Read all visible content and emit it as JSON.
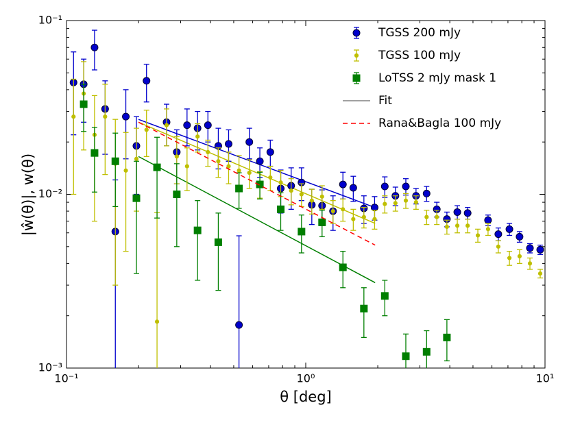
{
  "chart_data": {
    "type": "scatter",
    "x_label": "θ [deg]",
    "y_label": "|ŵ(θ)|, w(θ)",
    "xscale": "log",
    "yscale": "log",
    "xlim": [
      0.1,
      10
    ],
    "ylim": [
      0.001,
      0.1
    ],
    "xticks": [
      {
        "value": 0.1,
        "label": "10⁻¹"
      },
      {
        "value": 1,
        "label": "10⁰"
      },
      {
        "value": 10,
        "label": "10¹"
      }
    ],
    "yticks": [
      {
        "value": 0.001,
        "label": "10⁻³"
      },
      {
        "value": 0.01,
        "label": "10⁻²"
      },
      {
        "value": 0.1,
        "label": "10⁻¹"
      }
    ],
    "legend": "upper right",
    "series": [
      {
        "name": "TGSS 200 mJy",
        "color": "#0000cc",
        "style": "points",
        "marker": "circle",
        "x": [
          0.107,
          0.118,
          0.131,
          0.145,
          0.16,
          0.177,
          0.196,
          0.216,
          0.262,
          0.289,
          0.319,
          0.353,
          0.39,
          0.431,
          0.476,
          0.526,
          0.581,
          0.643,
          0.711,
          0.786,
          0.869,
          0.96,
          1.06,
          1.17,
          1.3,
          1.43,
          1.58,
          1.75,
          1.94,
          2.14,
          2.37,
          2.62,
          2.89,
          3.2,
          3.53,
          3.89,
          4.3,
          4.75,
          5.78,
          6.38,
          7.1,
          7.83,
          8.65,
          9.55
        ],
        "values": [
          0.044,
          0.043,
          0.07,
          0.031,
          0.0061,
          0.028,
          0.019,
          0.045,
          0.026,
          0.0175,
          0.025,
          0.024,
          0.025,
          0.019,
          0.0195,
          0.00177,
          0.02,
          0.0155,
          0.0175,
          0.0108,
          0.0112,
          0.0117,
          0.0087,
          0.0086,
          0.008,
          0.0114,
          0.0109,
          0.0083,
          0.0084,
          0.0111,
          0.0098,
          0.0111,
          0.0098,
          0.0101,
          0.0082,
          0.0072,
          0.0079,
          0.0078,
          0.0071,
          0.0059,
          0.0063,
          0.0057,
          0.0049,
          0.0048
        ],
        "errors": [
          0.022,
          0.017,
          0.018,
          0.014,
          0.006,
          0.012,
          0.009,
          0.011,
          0.007,
          0.006,
          0.006,
          0.006,
          0.005,
          0.005,
          0.004,
          0.004,
          0.004,
          0.003,
          0.003,
          0.003,
          0.003,
          0.0025,
          0.002,
          0.002,
          0.0018,
          0.002,
          0.0018,
          0.0015,
          0.0013,
          0.0015,
          0.0012,
          0.0012,
          0.001,
          0.001,
          0.0008,
          0.0007,
          0.0007,
          0.0006,
          0.0005,
          0.0005,
          0.0005,
          0.0004,
          0.0003,
          0.0003
        ]
      },
      {
        "name": "TGSS 100 mJy",
        "color": "#bfbf00",
        "style": "points",
        "marker": "dot",
        "x": [
          0.107,
          0.118,
          0.131,
          0.145,
          0.16,
          0.177,
          0.196,
          0.216,
          0.239,
          0.262,
          0.289,
          0.319,
          0.353,
          0.39,
          0.431,
          0.476,
          0.526,
          0.581,
          0.643,
          0.711,
          0.786,
          0.869,
          0.96,
          1.06,
          1.17,
          1.3,
          1.43,
          1.58,
          1.75,
          1.94,
          2.14,
          2.37,
          2.62,
          2.89,
          3.2,
          3.53,
          3.89,
          4.3,
          4.75,
          5.24,
          5.78,
          6.38,
          7.1,
          7.83,
          8.65,
          9.55
        ],
        "values": [
          0.028,
          0.038,
          0.022,
          0.028,
          0.015,
          0.0137,
          0.016,
          0.0235,
          0.00185,
          0.025,
          0.0165,
          0.0145,
          0.0215,
          0.0175,
          0.0155,
          0.0145,
          0.0137,
          0.0133,
          0.0115,
          0.0125,
          0.0117,
          0.0105,
          0.01,
          0.0092,
          0.0097,
          0.008,
          0.0082,
          0.0072,
          0.0074,
          0.0072,
          0.0088,
          0.0089,
          0.0092,
          0.009,
          0.0074,
          0.0074,
          0.0065,
          0.0066,
          0.0066,
          0.0058,
          0.0063,
          0.005,
          0.0043,
          0.0044,
          0.004,
          0.0035
        ],
        "errors": [
          0.018,
          0.02,
          0.015,
          0.015,
          0.012,
          0.009,
          0.008,
          0.007,
          0.006,
          0.006,
          0.005,
          0.004,
          0.004,
          0.003,
          0.003,
          0.003,
          0.003,
          0.0025,
          0.002,
          0.002,
          0.002,
          0.0018,
          0.0015,
          0.0015,
          0.0015,
          0.0012,
          0.0012,
          0.001,
          0.001,
          0.0009,
          0.001,
          0.0009,
          0.0009,
          0.0008,
          0.0007,
          0.0007,
          0.0006,
          0.0006,
          0.0006,
          0.0005,
          0.0005,
          0.0004,
          0.0004,
          0.0004,
          0.0003,
          0.0002
        ]
      },
      {
        "name": "LoTSS 2 mJy mask 1",
        "color": "#007f00",
        "style": "points",
        "marker": "square",
        "x": [
          0.118,
          0.131,
          0.16,
          0.196,
          0.239,
          0.289,
          0.353,
          0.431,
          0.526,
          0.643,
          0.786,
          0.96,
          1.17,
          1.43,
          1.75,
          2.14,
          2.62,
          3.2,
          3.89
        ],
        "values": [
          0.033,
          0.0173,
          0.0155,
          0.0095,
          0.0143,
          0.01,
          0.0062,
          0.0053,
          0.0108,
          0.0114,
          0.0082,
          0.0061,
          0.0069,
          0.0038,
          0.0022,
          0.0026,
          0.00117,
          0.00124,
          0.0015
        ],
        "errors": [
          0.01,
          0.007,
          0.007,
          0.006,
          0.007,
          0.005,
          0.003,
          0.0025,
          0.0025,
          0.002,
          0.002,
          0.0015,
          0.0012,
          0.0009,
          0.0007,
          0.0006,
          0.0004,
          0.0004,
          0.0004
        ]
      },
      {
        "name": "Rana&Bagla 100 mJy",
        "color": "#ff0000",
        "style": "dashed",
        "x": [
          0.2,
          1.95
        ],
        "values": [
          0.026,
          0.0051
        ]
      }
    ],
    "fit": {
      "name": "Fit",
      "color": "#808080",
      "lines": [
        {
          "color": "#0000cc",
          "x": [
            0.2,
            1.9
          ],
          "values": [
            0.027,
            0.0085
          ]
        },
        {
          "color": "#bfbf00",
          "x": [
            0.2,
            1.95
          ],
          "values": [
            0.026,
            0.0068
          ]
        },
        {
          "color": "#007f00",
          "x": [
            0.2,
            1.95
          ],
          "values": [
            0.0165,
            0.0031
          ]
        }
      ]
    }
  }
}
